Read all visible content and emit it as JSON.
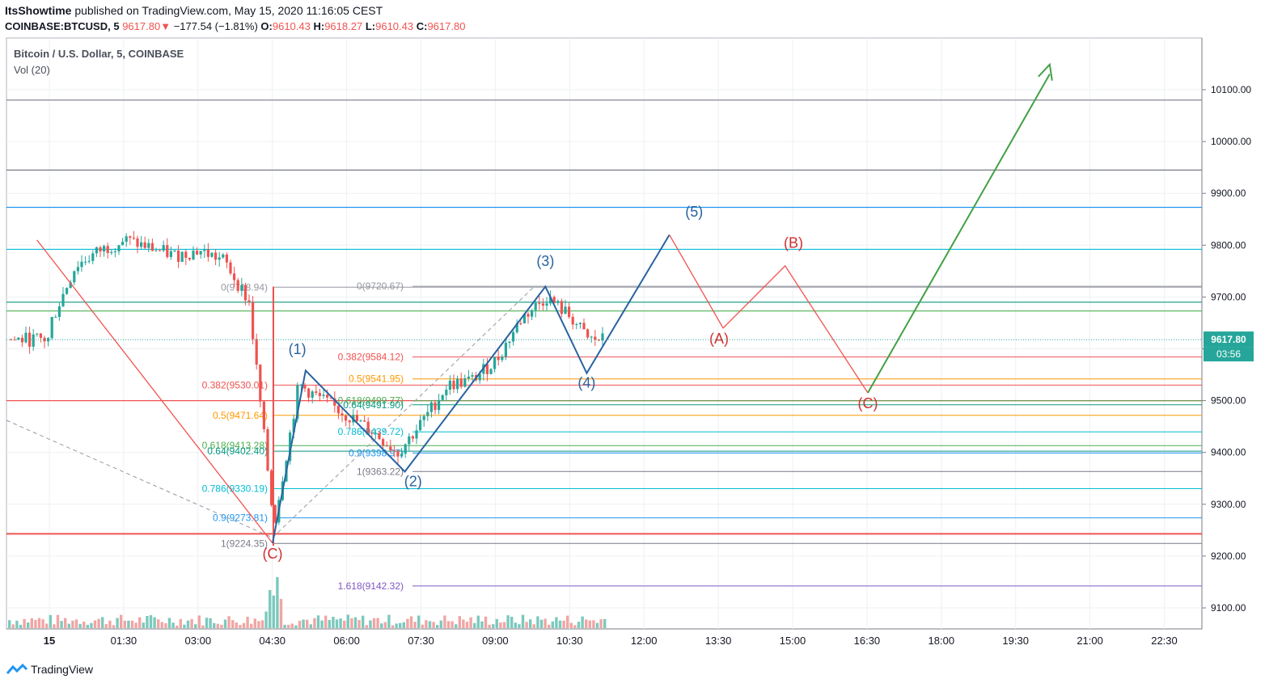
{
  "header": {
    "publisher": "ItsShowtime",
    "published_text": "published on TradingView.com, May 15, 2020 11:16:05 CEST",
    "symbol": "COINBASE:BTCUSD, 5",
    "last": "9617.80",
    "down_arrow": "▼",
    "change": "−177.54 (−1.81%)",
    "o_label": "O:",
    "o_value": "9610.43",
    "h_label": "H:",
    "h_value": "9618.27",
    "l_label": "L:",
    "l_value": "9610.43",
    "c_label": "C:",
    "c_value": "9617.80"
  },
  "legend": {
    "title": "Bitcoin / U.S. Dollar, 5, COINBASE",
    "volume": "Vol (20)"
  },
  "footer": {
    "brand": "TradingView",
    "logo_icon": "tradingview-logo-icon"
  },
  "chart_data": {
    "type": "line",
    "title": "Bitcoin / U.S. Dollar, 5, COINBASE",
    "ylim": [
      9050,
      10200
    ],
    "y_ticks": [
      "10100.00",
      "10000.00",
      "9900.00",
      "9800.00",
      "9700.00",
      "9600.00",
      "9500.00",
      "9400.00",
      "9300.00",
      "9200.00",
      "9100.00"
    ],
    "x_ticks": [
      "15",
      "01:30",
      "03:00",
      "04:30",
      "06:00",
      "07:30",
      "09:00",
      "10:30",
      "12:00",
      "13:30",
      "15:00",
      "16:30",
      "18:00",
      "19:30",
      "21:00",
      "22:30"
    ],
    "price_label": "9617.80",
    "countdown_label": "03:56",
    "fib_left": [
      {
        "text": "0(9718.94)",
        "color": "#9598a1",
        "price": 9718.94
      },
      {
        "text": "0.382(9530.01)",
        "color": "#ef5350",
        "price": 9530.01
      },
      {
        "text": "0.5(9471.64)",
        "color": "#ff9800",
        "price": 9471.64
      },
      {
        "text": "0.618(9413.28)",
        "color": "#4caf50",
        "price": 9413.28
      },
      {
        "text": "0.64(9402.40)",
        "color": "#089981",
        "price": 9402.4
      },
      {
        "text": "0.786(9330.19)",
        "color": "#00bcd4",
        "price": 9330.19
      },
      {
        "text": "0.9(9273.81)",
        "color": "#2196f3",
        "price": 9273.81
      },
      {
        "text": "1(9224.35)",
        "color": "#787b86",
        "price": 9224.35
      }
    ],
    "fib_mid": [
      {
        "text": "0(9720.67)",
        "color": "#9598a1",
        "price": 9720.67
      },
      {
        "text": "0.382(9584.12)",
        "color": "#ef5350",
        "price": 9584.12
      },
      {
        "text": "0.5(9541.95)",
        "color": "#ff9800",
        "price": 9541.95
      },
      {
        "text": "0.618(9499.77)",
        "color": "#4caf50",
        "price": 9499.77
      },
      {
        "text": "0.64(9491.90)",
        "color": "#089981",
        "price": 9491.9
      },
      {
        "text": "0.786(9439.72)",
        "color": "#00bcd4",
        "price": 9439.72
      },
      {
        "text": "0.9(9398.97)",
        "color": "#2196f3",
        "price": 9398.97
      },
      {
        "text": "1(9363.22)",
        "color": "#787b86",
        "price": 9363.22
      },
      {
        "text": "1.618(9142.32)",
        "color": "#7e57c2",
        "price": 9142.32
      }
    ],
    "horizontal_levels": [
      {
        "price": 10080,
        "color": "#787b86"
      },
      {
        "price": 9945,
        "color": "#787b86"
      },
      {
        "price": 9873,
        "color": "#2196f3"
      },
      {
        "price": 9792,
        "color": "#00bcd4"
      },
      {
        "price": 9690,
        "color": "#089981"
      },
      {
        "price": 9673,
        "color": "#4caf50"
      },
      {
        "price": 9500,
        "color": "#ef5350"
      },
      {
        "price": 9243,
        "color": "#ef5350"
      }
    ],
    "wave_labels": [
      {
        "text": "(1)",
        "color": "#2962a0",
        "x": "05:00",
        "price": 9590
      },
      {
        "text": "(2)",
        "color": "#2962a0",
        "x": "07:20",
        "price": 9335
      },
      {
        "text": "(3)",
        "color": "#2962a0",
        "x": "10:00",
        "price": 9760
      },
      {
        "text": "(4)",
        "color": "#2962a0",
        "x": "10:50",
        "price": 9525
      },
      {
        "text": "(5)",
        "color": "#2962a0",
        "x": "13:00",
        "price": 9855
      },
      {
        "text": "(C)",
        "color": "#d32f2f",
        "x": "04:30",
        "price": 9195
      },
      {
        "text": "(A)",
        "color": "#d32f2f",
        "x": "13:30",
        "price": 9610
      },
      {
        "text": "(B)",
        "color": "#d32f2f",
        "x": "15:00",
        "price": 9795
      },
      {
        "text": "(C)",
        "color": "#d32f2f",
        "x": "16:30",
        "price": 9485
      }
    ],
    "impulse_wave": {
      "color": "#2962a0",
      "points": [
        [
          "04:30",
          9225
        ],
        [
          "05:10",
          9558
        ],
        [
          "07:10",
          9363
        ],
        [
          "10:00",
          9720
        ],
        [
          "10:50",
          9553
        ],
        [
          "12:30",
          9820
        ]
      ]
    },
    "correction_wave": {
      "color": "#ef5350",
      "points": [
        [
          "12:30",
          9820
        ],
        [
          "13:35",
          9640
        ],
        [
          "14:50",
          9760
        ],
        [
          "16:30",
          9515
        ]
      ]
    },
    "projection": {
      "color": "#43a047",
      "points": [
        [
          "16:30",
          9515
        ],
        [
          "20:10",
          10130
        ]
      ]
    },
    "prior_down_leg": {
      "color": "#ef5350",
      "points": [
        [
          "-00:15",
          9810
        ],
        [
          "04:30",
          9225
        ]
      ]
    },
    "series_close_sample": [
      {
        "t": "00:00",
        "c": 9650
      },
      {
        "t": "00:30",
        "c": 9760
      },
      {
        "t": "01:00",
        "c": 9790
      },
      {
        "t": "01:30",
        "c": 9810
      },
      {
        "t": "02:00",
        "c": 9795
      },
      {
        "t": "02:30",
        "c": 9780
      },
      {
        "t": "03:00",
        "c": 9790
      },
      {
        "t": "03:30",
        "c": 9770
      },
      {
        "t": "04:00",
        "c": 9690
      },
      {
        "t": "04:30",
        "c": 9260
      },
      {
        "t": "05:00",
        "c": 9530
      },
      {
        "t": "05:30",
        "c": 9500
      },
      {
        "t": "06:00",
        "c": 9470
      },
      {
        "t": "06:30",
        "c": 9440
      },
      {
        "t": "07:00",
        "c": 9400
      },
      {
        "t": "07:30",
        "c": 9460
      },
      {
        "t": "08:00",
        "c": 9530
      },
      {
        "t": "08:30",
        "c": 9540
      },
      {
        "t": "09:00",
        "c": 9580
      },
      {
        "t": "09:30",
        "c": 9660
      },
      {
        "t": "10:00",
        "c": 9700
      },
      {
        "t": "10:30",
        "c": 9660
      },
      {
        "t": "10:50",
        "c": 9618
      }
    ]
  }
}
